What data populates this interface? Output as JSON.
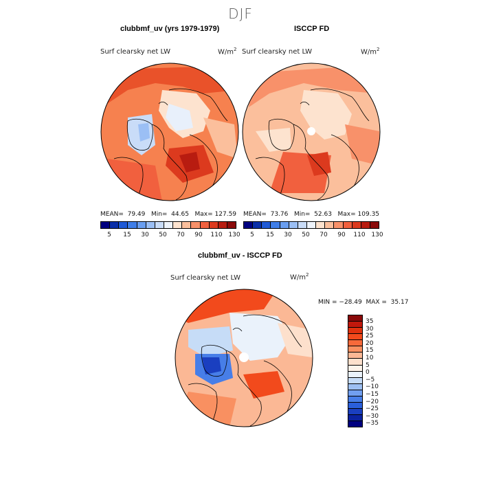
{
  "season": "DJF",
  "panels": {
    "model": {
      "title": "clubbmf_uv (yrs 1979-1979)",
      "variable": "Surf clearsky net LW",
      "units": "W/m",
      "units_sup": "2",
      "stats": "MEAN=  79.49   Min=  44.65   Max= 127.59"
    },
    "obs": {
      "title": "ISCCP FD",
      "variable": "Surf clearsky net LW",
      "units": "W/m",
      "units_sup": "2",
      "stats": "MEAN=  73.76   Min=  52.63   Max= 109.35"
    },
    "diff": {
      "title": "clubbmf_uv - ISCCP FD",
      "variable": "Surf clearsky net LW",
      "units": "W/m",
      "units_sup": "2",
      "stats": "MIN = −28.49  MAX =  35.17"
    }
  },
  "colorbar_abs": {
    "colors": [
      "#000080",
      "#0a2fa8",
      "#1f5ad6",
      "#3f7ee8",
      "#6a9ef0",
      "#9bbff5",
      "#c9dcf8",
      "#eef3fb",
      "#fde3cf",
      "#fbbf9c",
      "#f8916a",
      "#f1603e",
      "#dc3a1e",
      "#b81c10",
      "#8a0a0a"
    ],
    "ticks": [
      "5",
      "15",
      "30",
      "50",
      "70",
      "90",
      "110",
      "130"
    ]
  },
  "colorbar_diff": {
    "colors": [
      "#8a0a0a",
      "#c0180c",
      "#e0320f",
      "#f24a1c",
      "#f7693a",
      "#f99061",
      "#fbb895",
      "#fde0cc",
      "#fdf3ea",
      "#eaf2fb",
      "#c6dcf7",
      "#9dbff2",
      "#719ff0",
      "#477ee8",
      "#2a5fdb",
      "#1a3fc0",
      "#0b22a0",
      "#000080"
    ],
    "ticks": [
      "35",
      "30",
      "25",
      "20",
      "15",
      "10",
      "5",
      "0",
      "−5",
      "−10",
      "−15",
      "−20",
      "−25",
      "−30",
      "−35"
    ]
  }
}
